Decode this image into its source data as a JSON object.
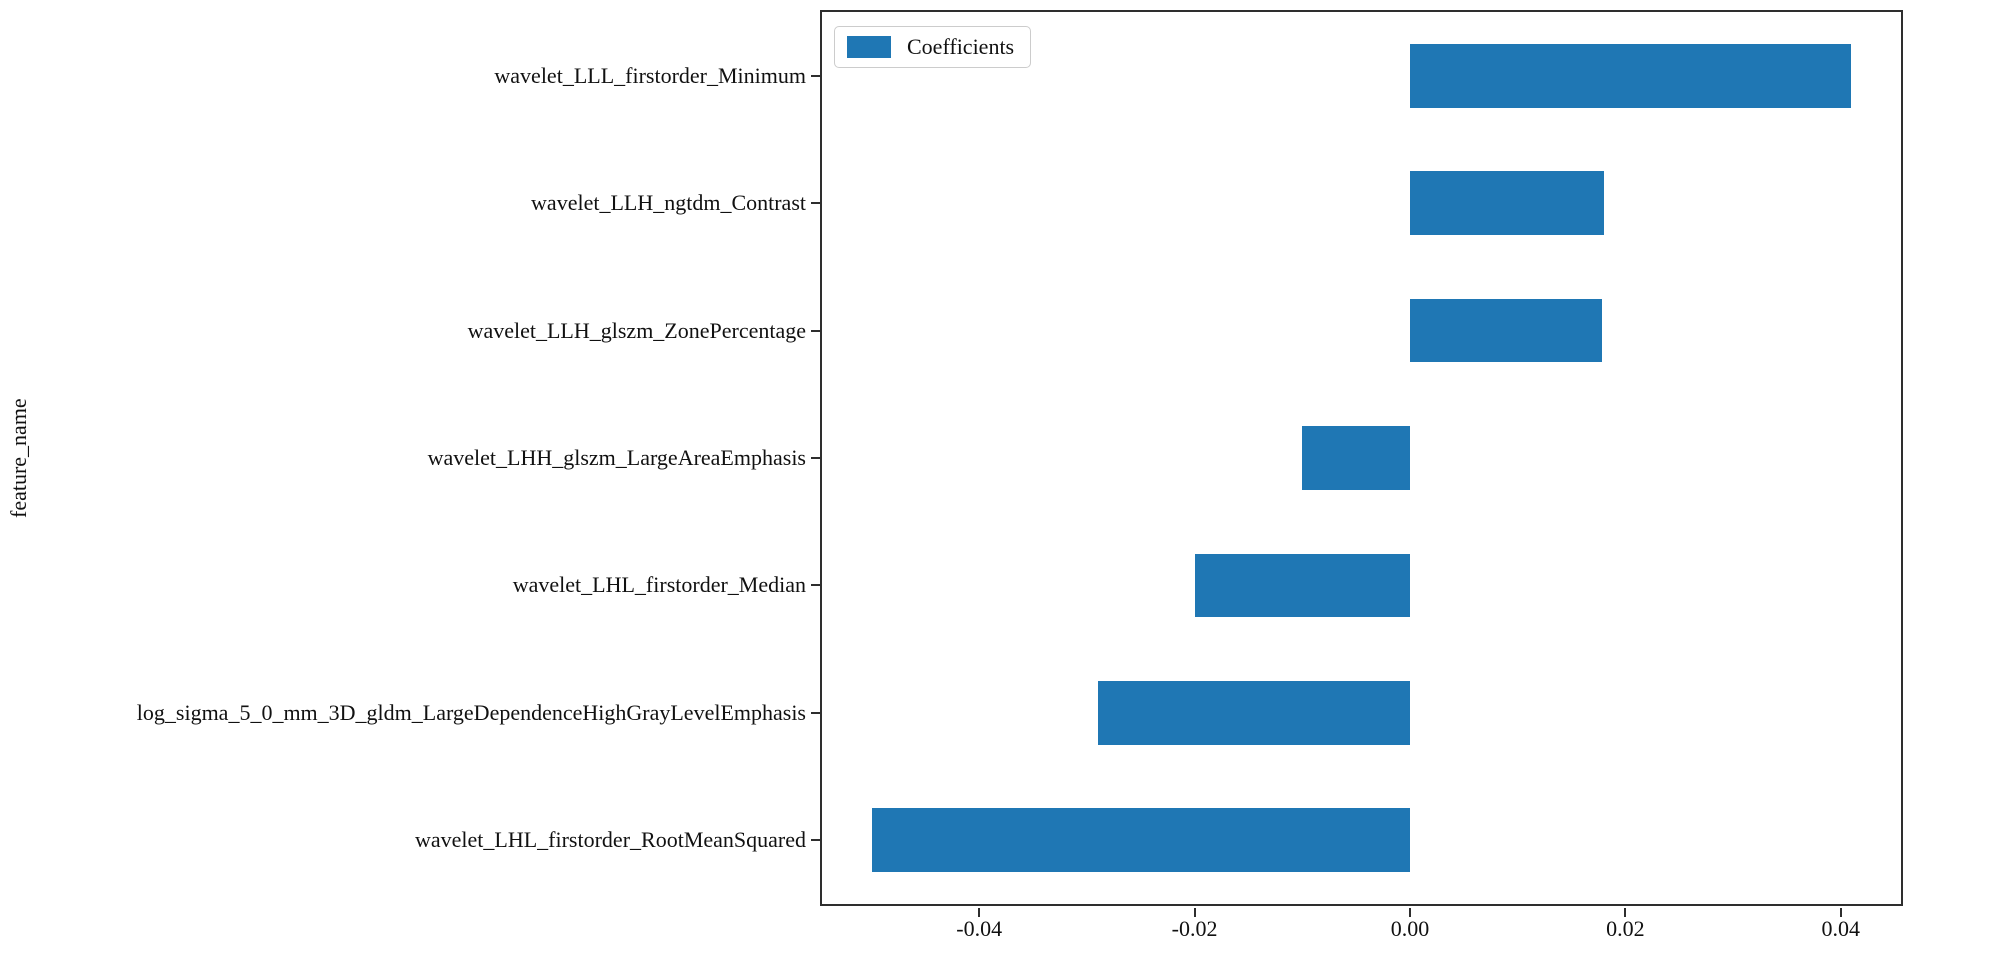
{
  "chart_data": {
    "type": "bar",
    "orientation": "horizontal",
    "title": "",
    "xlabel": "",
    "ylabel": "feature_name",
    "legend": {
      "label": "Coefficients",
      "position": "upper-left"
    },
    "bar_color": "#1f77b4",
    "grid": false,
    "categories": [
      "wavelet_LLL_firstorder_Minimum",
      "wavelet_LLH_ngtdm_Contrast",
      "wavelet_LLH_glszm_ZonePercentage",
      "wavelet_LHH_glszm_LargeAreaEmphasis",
      "wavelet_LHL_firstorder_Median",
      "log_sigma_5_0_mm_3D_gldm_LargeDependenceHighGrayLevelEmphasis",
      "wavelet_LHL_firstorder_RootMeanSquared"
    ],
    "series": [
      {
        "name": "Coefficients",
        "values": [
          0.041,
          0.018,
          0.0178,
          -0.01,
          -0.02,
          -0.029,
          -0.05
        ]
      }
    ],
    "xlim": [
      -0.0546,
      0.0456
    ],
    "xticks": [
      -0.04,
      -0.02,
      0.0,
      0.02,
      0.04
    ],
    "xtick_labels": [
      "-0.04",
      "-0.02",
      "0.00",
      "0.02",
      "0.04"
    ]
  }
}
